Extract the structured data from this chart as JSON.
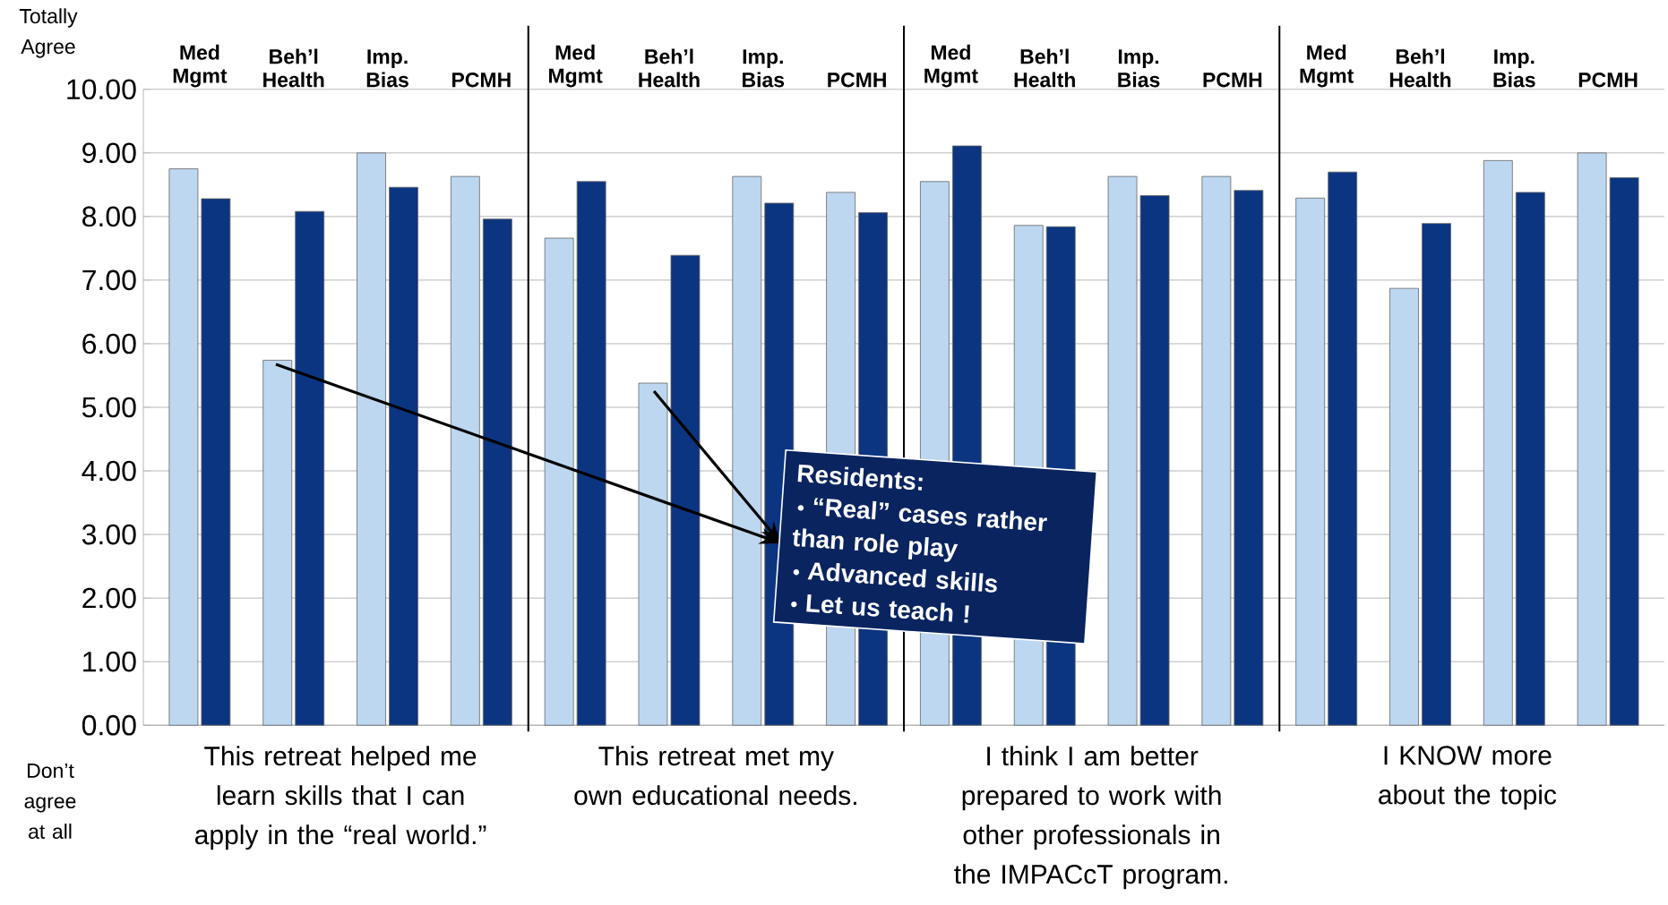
{
  "chart_data": {
    "type": "bar",
    "categories": [
      "Med Mgmt",
      "Beh’l Health",
      "Imp. Bias",
      "PCMH",
      "Med Mgmt",
      "Beh’l Health",
      "Imp. Bias",
      "PCMH",
      "Med Mgmt",
      "Beh’l Health",
      "Imp. Bias",
      "PCMH",
      "Med Mgmt",
      "Beh’l Health",
      "Imp. Bias",
      "PCMH"
    ],
    "series": [
      {
        "color": "#bdd7f0",
        "values": [
          8.75,
          5.74,
          9.0,
          8.63,
          7.66,
          5.38,
          8.63,
          8.38,
          8.55,
          7.86,
          8.63,
          8.63,
          8.29,
          6.87,
          8.88,
          9.0
        ]
      },
      {
        "color": "#0b3580",
        "values": [
          8.28,
          8.08,
          8.46,
          7.96,
          8.55,
          7.39,
          8.21,
          8.06,
          9.11,
          7.84,
          8.33,
          8.41,
          8.7,
          7.89,
          8.38,
          8.61
        ]
      }
    ],
    "ylim": [
      0,
      10
    ],
    "yticks": [
      {
        "value": 0,
        "label": "0.00"
      },
      {
        "value": 1,
        "label": "1.00"
      },
      {
        "value": 2,
        "label": "2.00"
      },
      {
        "value": 3,
        "label": "3.00"
      },
      {
        "value": 4,
        "label": "4.00"
      },
      {
        "value": 5,
        "label": "5.00"
      },
      {
        "value": 6,
        "label": "6.00"
      },
      {
        "value": 7,
        "label": "7.00"
      },
      {
        "value": 8,
        "label": "8.00"
      },
      {
        "value": 9,
        "label": "9.00"
      },
      {
        "value": 10,
        "label": "10.00"
      }
    ],
    "grid": "y",
    "annotations": [
      "This retreat helped me learn skills that I can apply in the “real world.”",
      "This retreat met my own educational needs.",
      "I think I am better prepared to work with other professionals in the IMPACcT program.",
      "I KNOW more about the topic",
      "Totally Agree",
      "Don’t agree at all",
      "Residents:",
      "“Real” cases rather than role play",
      "Advanced skills",
      "Let us teach !"
    ]
  }
}
